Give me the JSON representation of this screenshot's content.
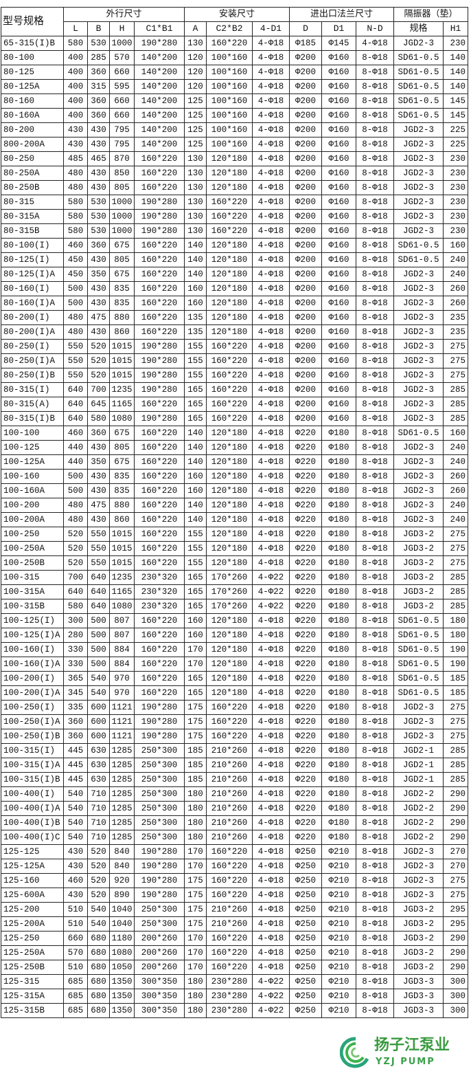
{
  "header": {
    "model": "型号规格",
    "group_outer": "外行尺寸",
    "group_install": "安装尺寸",
    "group_flange": "进出口法兰尺寸",
    "group_isolator": "隔振器（垫）",
    "columns": [
      "L",
      "B",
      "H",
      "C1*B1",
      "A",
      "C2*B2",
      "4-D1",
      "D",
      "D1",
      "N-D",
      "规格",
      "H1"
    ]
  },
  "rows": [
    [
      "65-315(I)B",
      "580",
      "530",
      "1000",
      "190*280",
      "130",
      "160*220",
      "4-Φ18",
      "Φ185",
      "Φ145",
      "4-Φ18",
      "JGD2-3",
      "230"
    ],
    [
      "80-100",
      "400",
      "285",
      "570",
      "140*200",
      "120",
      "100*160",
      "4-Φ18",
      "Φ200",
      "Φ160",
      "8-Φ18",
      "SD61-0.5",
      "140"
    ],
    [
      "80-125",
      "400",
      "360",
      "660",
      "140*200",
      "120",
      "100*160",
      "4-Φ18",
      "Φ200",
      "Φ160",
      "8-Φ18",
      "SD61-0.5",
      "140"
    ],
    [
      "80-125A",
      "400",
      "315",
      "595",
      "140*200",
      "120",
      "100*160",
      "4-Φ18",
      "Φ200",
      "Φ160",
      "8-Φ18",
      "SD61-0.5",
      "140"
    ],
    [
      "80-160",
      "400",
      "360",
      "660",
      "140*200",
      "125",
      "100*160",
      "4-Φ18",
      "Φ200",
      "Φ160",
      "8-Φ18",
      "SD61-0.5",
      "145"
    ],
    [
      "80-160A",
      "400",
      "360",
      "660",
      "140*200",
      "125",
      "100*160",
      "4-Φ18",
      "Φ200",
      "Φ160",
      "8-Φ18",
      "SD61-0.5",
      "145"
    ],
    [
      "80-200",
      "430",
      "430",
      "795",
      "140*200",
      "125",
      "100*160",
      "4-Φ18",
      "Φ200",
      "Φ160",
      "8-Φ18",
      "JGD2-3",
      "225"
    ],
    [
      "800-200A",
      "430",
      "430",
      "795",
      "140*200",
      "125",
      "100*160",
      "4-Φ18",
      "Φ200",
      "Φ160",
      "8-Φ18",
      "JGD2-3",
      "225"
    ],
    [
      "80-250",
      "485",
      "465",
      "870",
      "160*220",
      "130",
      "120*180",
      "4-Φ18",
      "Φ200",
      "Φ160",
      "8-Φ18",
      "JGD2-3",
      "230"
    ],
    [
      "80-250A",
      "480",
      "430",
      "850",
      "160*220",
      "130",
      "120*180",
      "4-Φ18",
      "Φ200",
      "Φ160",
      "8-Φ18",
      "JGD2-3",
      "230"
    ],
    [
      "80-250B",
      "480",
      "430",
      "805",
      "160*220",
      "130",
      "120*180",
      "4-Φ18",
      "Φ200",
      "Φ160",
      "8-Φ18",
      "JGD2-3",
      "230"
    ],
    [
      "80-315",
      "580",
      "530",
      "1000",
      "190*280",
      "130",
      "160*220",
      "4-Φ18",
      "Φ200",
      "Φ160",
      "8-Φ18",
      "JGD2-3",
      "230"
    ],
    [
      "80-315A",
      "580",
      "530",
      "1000",
      "190*280",
      "130",
      "160*220",
      "4-Φ18",
      "Φ200",
      "Φ160",
      "8-Φ18",
      "JGD2-3",
      "230"
    ],
    [
      "80-315B",
      "580",
      "530",
      "1000",
      "190*280",
      "130",
      "160*220",
      "4-Φ18",
      "Φ200",
      "Φ160",
      "8-Φ18",
      "JGD2-3",
      "230"
    ],
    [
      "80-100(I)",
      "460",
      "360",
      "675",
      "160*220",
      "140",
      "120*180",
      "4-Φ18",
      "Φ200",
      "Φ160",
      "8-Φ18",
      "SD61-0.5",
      "160"
    ],
    [
      "80-125(I)",
      "450",
      "430",
      "805",
      "160*220",
      "140",
      "120*180",
      "4-Φ18",
      "Φ200",
      "Φ160",
      "8-Φ18",
      "SD61-0.5",
      "240"
    ],
    [
      "80-125(I)A",
      "450",
      "350",
      "675",
      "160*220",
      "140",
      "120*180",
      "4-Φ18",
      "Φ200",
      "Φ160",
      "8-Φ18",
      "JGD2-3",
      "240"
    ],
    [
      "80-160(I)",
      "500",
      "430",
      "835",
      "160*220",
      "160",
      "120*180",
      "4-Φ18",
      "Φ200",
      "Φ160",
      "8-Φ18",
      "JGD2-3",
      "260"
    ],
    [
      "80-160(I)A",
      "500",
      "430",
      "835",
      "160*220",
      "160",
      "120*180",
      "4-Φ18",
      "Φ200",
      "Φ160",
      "8-Φ18",
      "JGD2-3",
      "260"
    ],
    [
      "80-200(I)",
      "480",
      "475",
      "880",
      "160*220",
      "135",
      "120*180",
      "4-Φ18",
      "Φ200",
      "Φ160",
      "8-Φ18",
      "JGD2-3",
      "235"
    ],
    [
      "80-200(I)A",
      "480",
      "430",
      "860",
      "160*220",
      "135",
      "120*180",
      "4-Φ18",
      "Φ200",
      "Φ160",
      "8-Φ18",
      "JGD2-3",
      "235"
    ],
    [
      "80-250(I)",
      "550",
      "520",
      "1015",
      "190*280",
      "155",
      "160*220",
      "4-Φ18",
      "Φ200",
      "Φ160",
      "8-Φ18",
      "JGD2-3",
      "275"
    ],
    [
      "80-250(I)A",
      "550",
      "520",
      "1015",
      "190*280",
      "155",
      "160*220",
      "4-Φ18",
      "Φ200",
      "Φ160",
      "8-Φ18",
      "JGD2-3",
      "275"
    ],
    [
      "80-250(I)B",
      "550",
      "520",
      "1015",
      "190*280",
      "155",
      "160*220",
      "4-Φ18",
      "Φ200",
      "Φ160",
      "8-Φ18",
      "JGD2-3",
      "275"
    ],
    [
      "80-315(I)",
      "640",
      "700",
      "1235",
      "190*280",
      "165",
      "160*220",
      "4-Φ18",
      "Φ200",
      "Φ160",
      "8-Φ18",
      "JGD2-3",
      "285"
    ],
    [
      "80-315(A)",
      "640",
      "645",
      "1165",
      "160*220",
      "165",
      "160*220",
      "4-Φ18",
      "Φ200",
      "Φ160",
      "8-Φ18",
      "JGD2-3",
      "285"
    ],
    [
      "80-315(I)B",
      "640",
      "580",
      "1080",
      "190*280",
      "165",
      "160*220",
      "4-Φ18",
      "Φ200",
      "Φ160",
      "8-Φ18",
      "JGD2-3",
      "285"
    ],
    [
      "100-100",
      "460",
      "360",
      "675",
      "160*220",
      "140",
      "120*180",
      "4-Φ18",
      "Φ220",
      "Φ180",
      "8-Φ18",
      "SD61-0.5",
      "160"
    ],
    [
      "100-125",
      "440",
      "430",
      "805",
      "160*220",
      "140",
      "120*180",
      "4-Φ18",
      "Φ220",
      "Φ180",
      "8-Φ18",
      "JGD2-3",
      "240"
    ],
    [
      "100-125A",
      "440",
      "350",
      "675",
      "160*220",
      "140",
      "120*180",
      "4-Φ18",
      "Φ220",
      "Φ180",
      "8-Φ18",
      "JGD2-3",
      "240"
    ],
    [
      "100-160",
      "500",
      "430",
      "835",
      "160*220",
      "160",
      "120*180",
      "4-Φ18",
      "Φ220",
      "Φ180",
      "8-Φ18",
      "JGD2-3",
      "260"
    ],
    [
      "100-160A",
      "500",
      "430",
      "835",
      "160*220",
      "160",
      "120*180",
      "4-Φ18",
      "Φ220",
      "Φ180",
      "8-Φ18",
      "JGD2-3",
      "260"
    ],
    [
      "100-200",
      "480",
      "475",
      "880",
      "160*220",
      "140",
      "120*180",
      "4-Φ18",
      "Φ220",
      "Φ180",
      "8-Φ18",
      "JGD2-3",
      "240"
    ],
    [
      "100-200A",
      "480",
      "430",
      "860",
      "160*220",
      "140",
      "120*180",
      "4-Φ18",
      "Φ220",
      "Φ180",
      "8-Φ18",
      "JGD2-3",
      "240"
    ],
    [
      "100-250",
      "520",
      "550",
      "1015",
      "160*220",
      "155",
      "120*180",
      "4-Φ18",
      "Φ220",
      "Φ180",
      "8-Φ18",
      "JGD3-2",
      "275"
    ],
    [
      "100-250A",
      "520",
      "550",
      "1015",
      "160*220",
      "155",
      "120*180",
      "4-Φ18",
      "Φ220",
      "Φ180",
      "8-Φ18",
      "JGD3-2",
      "275"
    ],
    [
      "100-250B",
      "520",
      "550",
      "1015",
      "160*220",
      "155",
      "120*180",
      "4-Φ18",
      "Φ220",
      "Φ180",
      "8-Φ18",
      "JGD3-2",
      "275"
    ],
    [
      "100-315",
      "700",
      "640",
      "1235",
      "230*320",
      "165",
      "170*260",
      "4-Φ22",
      "Φ220",
      "Φ180",
      "8-Φ18",
      "JGD3-2",
      "285"
    ],
    [
      "100-315A",
      "640",
      "640",
      "1165",
      "230*320",
      "165",
      "170*260",
      "4-Φ22",
      "Φ220",
      "Φ180",
      "8-Φ18",
      "JGD3-2",
      "285"
    ],
    [
      "100-315B",
      "580",
      "640",
      "1080",
      "230*320",
      "165",
      "170*260",
      "4-Φ22",
      "Φ220",
      "Φ180",
      "8-Φ18",
      "JGD3-2",
      "285"
    ],
    [
      "100-125(I)",
      "300",
      "500",
      "807",
      "160*220",
      "160",
      "120*180",
      "4-Φ18",
      "Φ220",
      "Φ180",
      "8-Φ18",
      "SD61-0.5",
      "180"
    ],
    [
      "100-125(I)A",
      "280",
      "500",
      "807",
      "160*220",
      "160",
      "120*180",
      "4-Φ18",
      "Φ220",
      "Φ180",
      "8-Φ18",
      "SD61-0.5",
      "180"
    ],
    [
      "100-160(I)",
      "330",
      "500",
      "884",
      "160*220",
      "170",
      "120*180",
      "4-Φ18",
      "Φ220",
      "Φ180",
      "8-Φ18",
      "SD61-0.5",
      "190"
    ],
    [
      "100-160(I)A",
      "330",
      "500",
      "884",
      "160*220",
      "170",
      "120*180",
      "4-Φ18",
      "Φ220",
      "Φ180",
      "8-Φ18",
      "SD61-0.5",
      "190"
    ],
    [
      "100-200(I)",
      "365",
      "540",
      "970",
      "160*220",
      "165",
      "120*180",
      "4-Φ18",
      "Φ220",
      "Φ180",
      "8-Φ18",
      "SD61-0.5",
      "185"
    ],
    [
      "100-200(I)A",
      "345",
      "540",
      "970",
      "160*220",
      "165",
      "120*180",
      "4-Φ18",
      "Φ220",
      "Φ180",
      "8-Φ18",
      "SD61-0.5",
      "185"
    ],
    [
      "100-250(I)",
      "335",
      "600",
      "1121",
      "190*280",
      "175",
      "160*220",
      "4-Φ18",
      "Φ220",
      "Φ180",
      "8-Φ18",
      "JGD2-3",
      "275"
    ],
    [
      "100-250(I)A",
      "360",
      "600",
      "1121",
      "190*280",
      "175",
      "160*220",
      "4-Φ18",
      "Φ220",
      "Φ180",
      "8-Φ18",
      "JGD2-3",
      "275"
    ],
    [
      "100-250(I)B",
      "360",
      "600",
      "1121",
      "190*280",
      "175",
      "160*220",
      "4-Φ18",
      "Φ220",
      "Φ180",
      "8-Φ18",
      "JGD2-3",
      "275"
    ],
    [
      "100-315(I)",
      "445",
      "630",
      "1285",
      "250*300",
      "185",
      "210*260",
      "4-Φ18",
      "Φ220",
      "Φ180",
      "8-Φ18",
      "JGD2-1",
      "285"
    ],
    [
      "100-315(I)A",
      "445",
      "630",
      "1285",
      "250*300",
      "185",
      "210*260",
      "4-Φ18",
      "Φ220",
      "Φ180",
      "8-Φ18",
      "JGD2-1",
      "285"
    ],
    [
      "100-315(I)B",
      "445",
      "630",
      "1285",
      "250*300",
      "185",
      "210*260",
      "4-Φ18",
      "Φ220",
      "Φ180",
      "8-Φ18",
      "JGD2-1",
      "285"
    ],
    [
      "100-400(I)",
      "540",
      "710",
      "1285",
      "250*300",
      "180",
      "210*260",
      "4-Φ18",
      "Φ220",
      "Φ180",
      "8-Φ18",
      "JGD2-2",
      "290"
    ],
    [
      "100-400(I)A",
      "540",
      "710",
      "1285",
      "250*300",
      "180",
      "210*260",
      "4-Φ18",
      "Φ220",
      "Φ180",
      "8-Φ18",
      "JGD2-2",
      "290"
    ],
    [
      "100-400(I)B",
      "540",
      "710",
      "1285",
      "250*300",
      "180",
      "210*260",
      "4-Φ18",
      "Φ220",
      "Φ180",
      "8-Φ18",
      "JGD2-2",
      "290"
    ],
    [
      "100-400(I)C",
      "540",
      "710",
      "1285",
      "250*300",
      "180",
      "210*260",
      "4-Φ18",
      "Φ220",
      "Φ180",
      "8-Φ18",
      "JGD2-2",
      "290"
    ],
    [
      "125-125",
      "430",
      "520",
      "840",
      "190*280",
      "170",
      "160*220",
      "4-Φ18",
      "Φ250",
      "Φ210",
      "8-Φ18",
      "JGD2-3",
      "270"
    ],
    [
      "125-125A",
      "430",
      "520",
      "840",
      "190*280",
      "170",
      "160*220",
      "4-Φ18",
      "Φ250",
      "Φ210",
      "8-Φ18",
      "JGD2-3",
      "270"
    ],
    [
      "125-160",
      "460",
      "520",
      "920",
      "190*280",
      "175",
      "160*220",
      "4-Φ18",
      "Φ250",
      "Φ210",
      "8-Φ18",
      "JGD2-3",
      "275"
    ],
    [
      "125-600A",
      "430",
      "520",
      "890",
      "190*280",
      "175",
      "160*220",
      "4-Φ18",
      "Φ250",
      "Φ210",
      "8-Φ18",
      "JGD2-3",
      "275"
    ],
    [
      "125-200",
      "510",
      "540",
      "1040",
      "250*300",
      "175",
      "210*260",
      "4-Φ18",
      "Φ250",
      "Φ210",
      "8-Φ18",
      "JGD3-2",
      "295"
    ],
    [
      "125-200A",
      "510",
      "540",
      "1040",
      "250*300",
      "175",
      "210*260",
      "4-Φ18",
      "Φ250",
      "Φ210",
      "8-Φ18",
      "JGD3-2",
      "295"
    ],
    [
      "125-250",
      "660",
      "680",
      "1180",
      "200*260",
      "170",
      "160*220",
      "4-Φ18",
      "Φ250",
      "Φ210",
      "8-Φ18",
      "JGD3-2",
      "290"
    ],
    [
      "125-250A",
      "570",
      "680",
      "1080",
      "200*260",
      "170",
      "160*220",
      "4-Φ18",
      "Φ250",
      "Φ210",
      "8-Φ18",
      "JGD3-2",
      "290"
    ],
    [
      "125-250B",
      "510",
      "680",
      "1050",
      "200*260",
      "170",
      "160*220",
      "4-Φ18",
      "Φ250",
      "Φ210",
      "8-Φ18",
      "JGD3-2",
      "290"
    ],
    [
      "125-315",
      "685",
      "680",
      "1350",
      "300*350",
      "180",
      "230*280",
      "4-Φ22",
      "Φ250",
      "Φ210",
      "8-Φ18",
      "JGD3-3",
      "300"
    ],
    [
      "125-315A",
      "685",
      "680",
      "1350",
      "300*350",
      "180",
      "230*280",
      "4-Φ22",
      "Φ250",
      "Φ210",
      "8-Φ18",
      "JGD3-3",
      "300"
    ],
    [
      "125-315B",
      "685",
      "680",
      "1350",
      "300*350",
      "180",
      "230*280",
      "4-Φ22",
      "Φ250",
      "Φ210",
      "8-Φ18",
      "JGD3-3",
      "300"
    ]
  ],
  "logo": {
    "name": "扬子江泵业",
    "sub": "YZJ PUMP",
    "color": "#3a9a3f"
  }
}
